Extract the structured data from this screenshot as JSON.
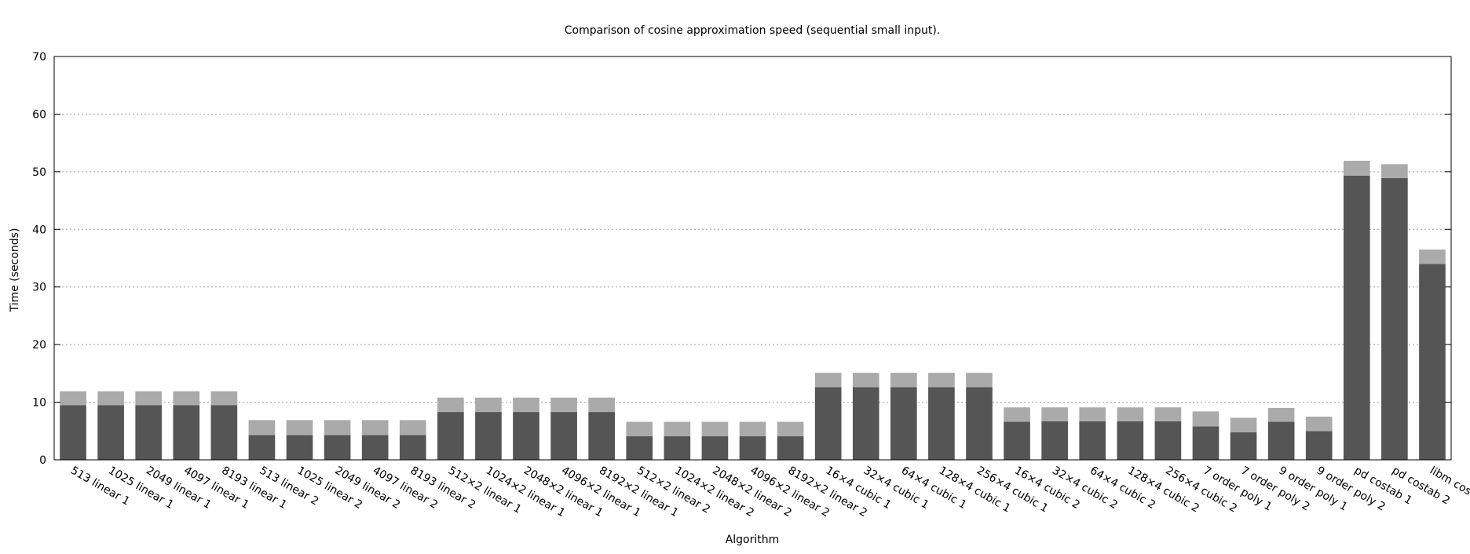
{
  "chart_data": {
    "type": "bar",
    "stacked": true,
    "title": "Comparison of cosine approximation speed (sequential small input).",
    "xlabel": "Algorithm",
    "ylabel": "Time (seconds)",
    "ylim": [
      0,
      70
    ],
    "yticks": [
      0,
      10,
      20,
      30,
      40,
      50,
      60,
      70
    ],
    "grid": "horizontal dotted",
    "categories": [
      "513 linear 1",
      "1025 linear 1",
      "2049 linear 1",
      "4097 linear 1",
      "8193 linear 1",
      "513 linear 2",
      "1025 linear 2",
      "2049 linear 2",
      "4097 linear 2",
      "8193 linear 2",
      "512×2 linear 1",
      "1024×2 linear 1",
      "2048×2 linear 1",
      "4096×2 linear 1",
      "8192×2 linear 1",
      "512×2 linear 2",
      "1024×2 linear 2",
      "2048×2 linear 2",
      "4096×2 linear 2",
      "8192×2 linear 2",
      "16×4 cubic 1",
      "32×4 cubic 1",
      "64×4 cubic 1",
      "128×4 cubic 1",
      "256×4 cubic 1",
      "16×4 cubic 2",
      "32×4 cubic 2",
      "64×4 cubic 2",
      "128×4 cubic 2",
      "256×4 cubic 2",
      "7 order poly 1",
      "7 order poly 2",
      "9 order poly 1",
      "9 order poly 2",
      "pd costab 1",
      "pd costab 2",
      "libm cosf()"
    ],
    "series": [
      {
        "color": "#555555",
        "values": [
          9.5,
          9.5,
          9.5,
          9.5,
          9.5,
          4.3,
          4.3,
          4.3,
          4.3,
          4.3,
          8.3,
          8.3,
          8.3,
          8.3,
          8.3,
          4.1,
          4.1,
          4.1,
          4.1,
          4.1,
          12.6,
          12.6,
          12.6,
          12.6,
          12.6,
          6.6,
          6.7,
          6.7,
          6.7,
          6.7,
          5.8,
          4.8,
          6.6,
          5.0,
          49.3,
          48.9,
          34.0
        ]
      },
      {
        "color": "#aaaaaa",
        "values": [
          2.4,
          2.4,
          2.4,
          2.4,
          2.4,
          2.6,
          2.6,
          2.6,
          2.6,
          2.6,
          2.5,
          2.5,
          2.5,
          2.5,
          2.5,
          2.5,
          2.5,
          2.5,
          2.5,
          2.5,
          2.5,
          2.5,
          2.5,
          2.5,
          2.5,
          2.5,
          2.4,
          2.4,
          2.4,
          2.4,
          2.6,
          2.5,
          2.4,
          2.5,
          2.6,
          2.4,
          2.5
        ]
      }
    ]
  }
}
